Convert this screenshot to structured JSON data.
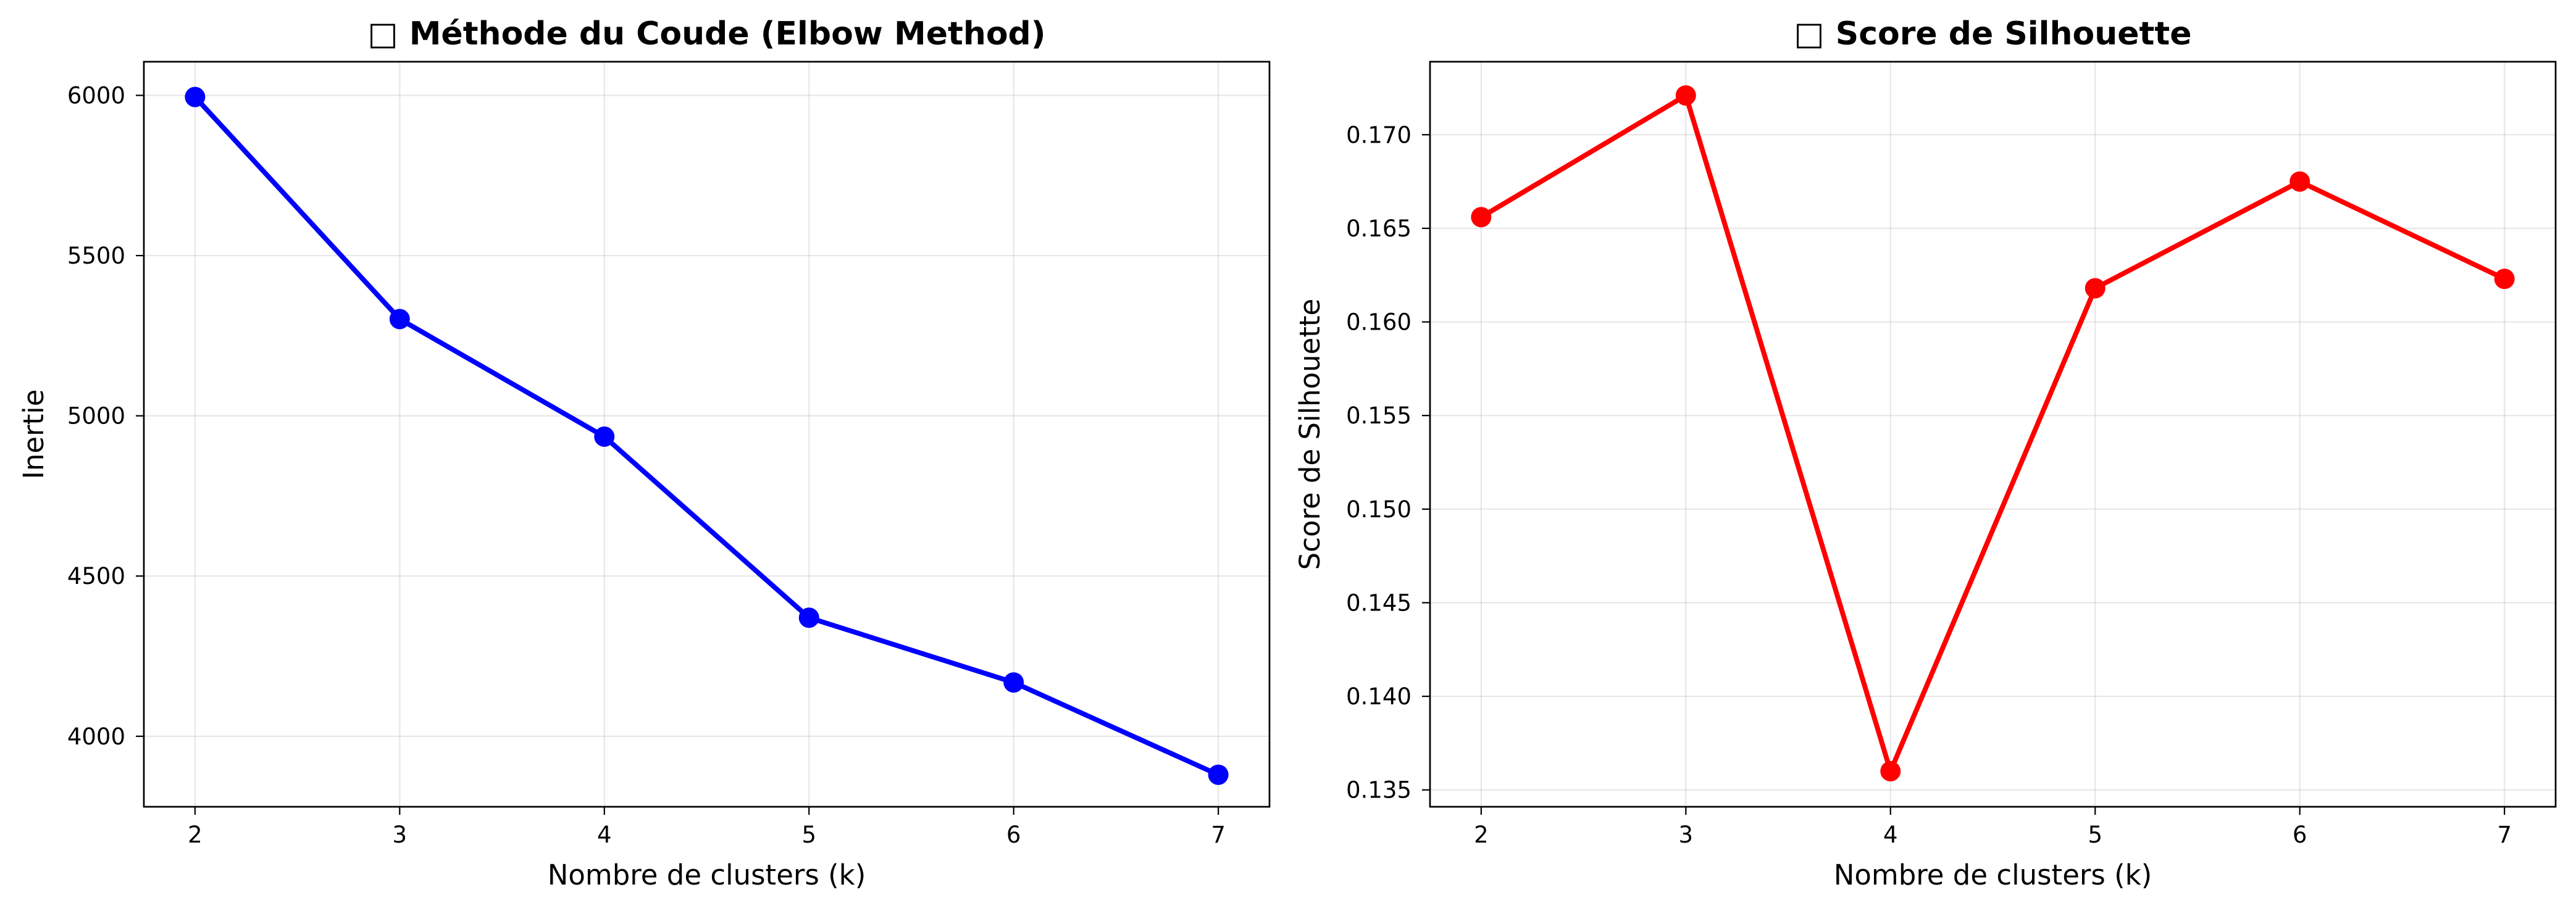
{
  "chart_data": [
    {
      "type": "line",
      "title": "□ Méthode du Coude (Elbow Method)",
      "xlabel": "Nombre de clusters (k)",
      "ylabel": "Inertie",
      "x": [
        2,
        3,
        4,
        5,
        6,
        7
      ],
      "xticks": [
        2,
        3,
        4,
        5,
        6,
        7
      ],
      "yticks": [
        4000,
        4500,
        5000,
        5500,
        6000
      ],
      "xlim": [
        1.75,
        7.25
      ],
      "ylim": [
        3780,
        6105
      ],
      "grid": true,
      "series": [
        {
          "values": [
            5995,
            5302,
            4935,
            4370,
            4168,
            3880
          ],
          "color": "#0000ff",
          "marker": "circle"
        }
      ]
    },
    {
      "type": "line",
      "title": "□ Score de Silhouette",
      "xlabel": "Nombre de clusters (k)",
      "ylabel": "Score de Silhouette",
      "x": [
        2,
        3,
        4,
        5,
        6,
        7
      ],
      "xticks": [
        2,
        3,
        4,
        5,
        6,
        7
      ],
      "yticks": [
        0.135,
        0.14,
        0.145,
        0.15,
        0.155,
        0.16,
        0.165,
        0.17
      ],
      "xlim": [
        1.75,
        7.25
      ],
      "ylim": [
        0.1341,
        0.1739
      ],
      "grid": true,
      "series": [
        {
          "values": [
            0.1656,
            0.1721,
            0.136,
            0.1618,
            0.1675,
            0.1623
          ],
          "color": "#ff0000",
          "marker": "circle"
        }
      ]
    }
  ]
}
